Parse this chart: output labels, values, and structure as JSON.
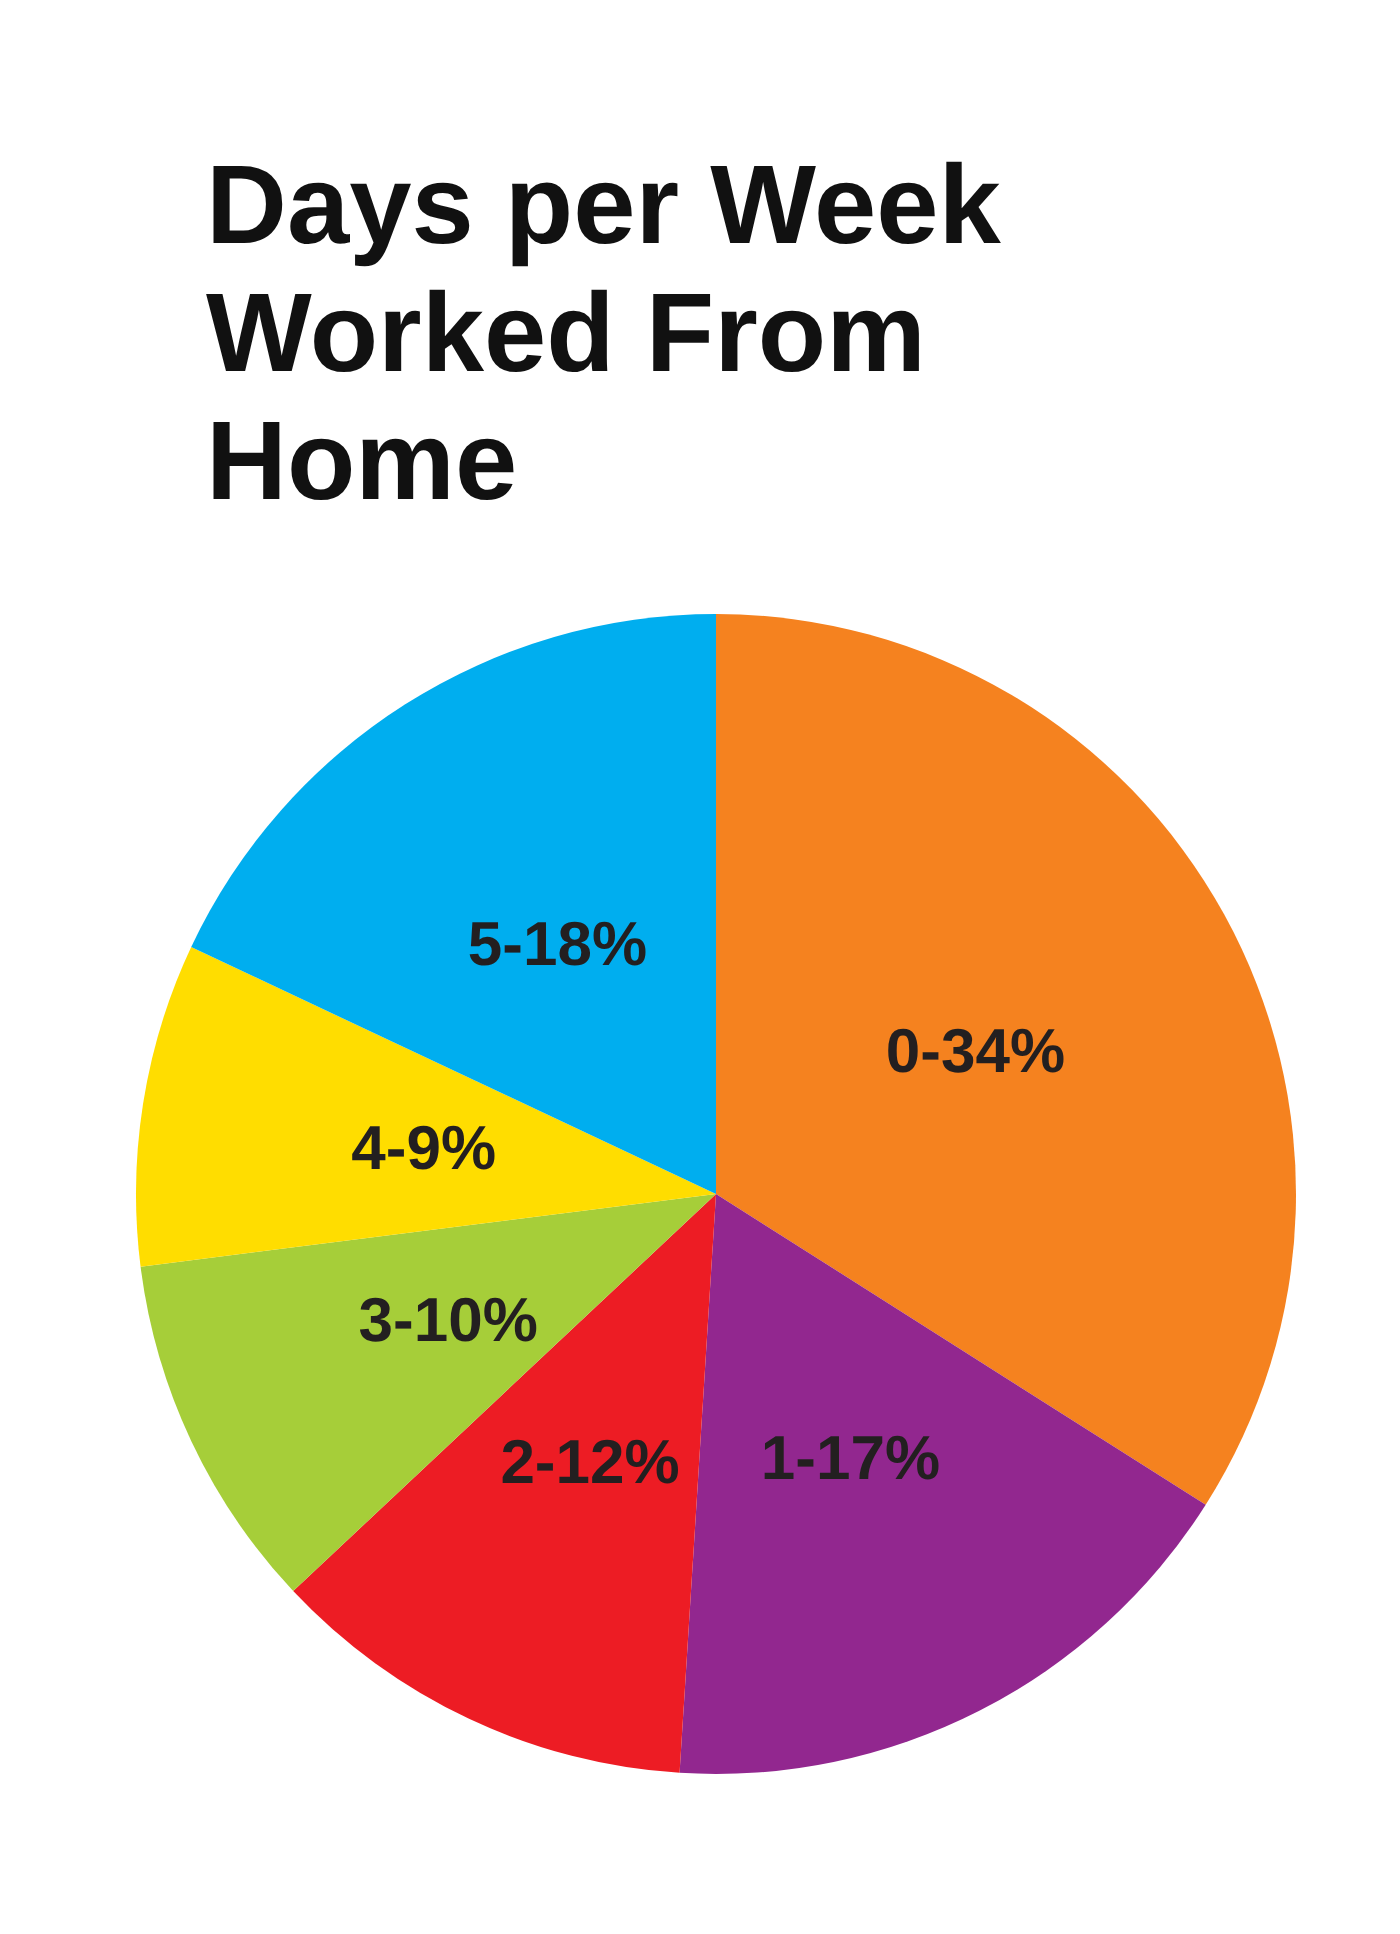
{
  "chart_data": {
    "type": "pie",
    "title": "Days per Week Worked From Home",
    "categories": [
      "0-34%",
      "1-17%",
      "2-12%",
      "3-10%",
      "4-9%",
      "5-18%"
    ],
    "values": [
      34,
      17,
      12,
      10,
      9,
      18
    ],
    "colors": [
      "#f5821f",
      "#92278f",
      "#ed1c24",
      "#a6ce39",
      "#ffdd00",
      "#00aeef"
    ],
    "legend": false
  }
}
